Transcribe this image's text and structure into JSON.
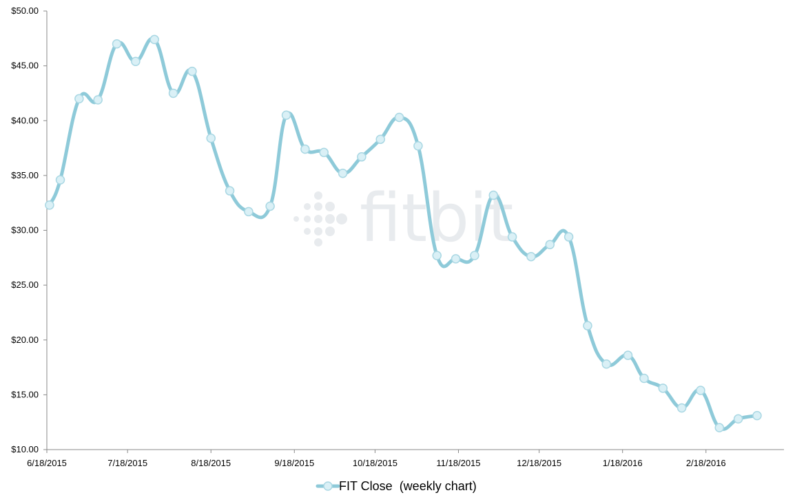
{
  "chart_data": {
    "type": "line",
    "title": "",
    "xlabel": "",
    "ylabel": "",
    "ylim": [
      10,
      50
    ],
    "y_ticks": [
      "$10.00",
      "$15.00",
      "$20.00",
      "$25.00",
      "$30.00",
      "$35.00",
      "$40.00",
      "$45.00",
      "$50.00"
    ],
    "x_range": [
      "2015-06-18",
      "2016-03-18"
    ],
    "x_ticks": [
      {
        "date": "2015-06-18",
        "label": "6/18/2015"
      },
      {
        "date": "2015-07-18",
        "label": "7/18/2015"
      },
      {
        "date": "2015-08-18",
        "label": "8/18/2015"
      },
      {
        "date": "2015-09-18",
        "label": "9/18/2015"
      },
      {
        "date": "2015-10-18",
        "label": "10/18/2015"
      },
      {
        "date": "2015-11-18",
        "label": "11/18/2015"
      },
      {
        "date": "2015-12-18",
        "label": "12/18/2015"
      },
      {
        "date": "2016-01-18",
        "label": "1/18/2016"
      },
      {
        "date": "2016-02-18",
        "label": "2/18/2016"
      }
    ],
    "grid": false,
    "legend_position": "bottom-center",
    "series": [
      {
        "name": "FIT Close  (weekly chart)",
        "color": "#8ecad9",
        "marker_fill": "#daf0f6",
        "points": [
          {
            "x": "2015-06-19",
            "y": 32.3
          },
          {
            "x": "2015-06-23",
            "y": 34.6
          },
          {
            "x": "2015-06-30",
            "y": 42.0
          },
          {
            "x": "2015-07-07",
            "y": 41.9
          },
          {
            "x": "2015-07-14",
            "y": 47.0
          },
          {
            "x": "2015-07-21",
            "y": 45.4
          },
          {
            "x": "2015-07-28",
            "y": 47.4
          },
          {
            "x": "2015-08-04",
            "y": 42.5
          },
          {
            "x": "2015-08-11",
            "y": 44.5
          },
          {
            "x": "2015-08-18",
            "y": 38.4
          },
          {
            "x": "2015-08-25",
            "y": 33.6
          },
          {
            "x": "2015-09-01",
            "y": 31.7
          },
          {
            "x": "2015-09-09",
            "y": 32.2
          },
          {
            "x": "2015-09-15",
            "y": 40.5
          },
          {
            "x": "2015-09-22",
            "y": 37.4
          },
          {
            "x": "2015-09-29",
            "y": 37.1
          },
          {
            "x": "2015-10-06",
            "y": 35.2
          },
          {
            "x": "2015-10-13",
            "y": 36.7
          },
          {
            "x": "2015-10-20",
            "y": 38.3
          },
          {
            "x": "2015-10-27",
            "y": 40.3
          },
          {
            "x": "2015-11-03",
            "y": 37.7
          },
          {
            "x": "2015-11-10",
            "y": 27.7
          },
          {
            "x": "2015-11-17",
            "y": 27.4
          },
          {
            "x": "2015-11-24",
            "y": 27.7
          },
          {
            "x": "2015-12-01",
            "y": 33.2
          },
          {
            "x": "2015-12-08",
            "y": 29.4
          },
          {
            "x": "2015-12-15",
            "y": 27.6
          },
          {
            "x": "2015-12-22",
            "y": 28.7
          },
          {
            "x": "2015-12-29",
            "y": 29.4
          },
          {
            "x": "2016-01-05",
            "y": 21.3
          },
          {
            "x": "2016-01-12",
            "y": 17.8
          },
          {
            "x": "2016-01-20",
            "y": 18.6
          },
          {
            "x": "2016-01-26",
            "y": 16.5
          },
          {
            "x": "2016-02-02",
            "y": 15.6
          },
          {
            "x": "2016-02-09",
            "y": 13.8
          },
          {
            "x": "2016-02-16",
            "y": 15.4
          },
          {
            "x": "2016-02-23",
            "y": 12.0
          },
          {
            "x": "2016-03-01",
            "y": 12.8
          },
          {
            "x": "2016-03-08",
            "y": 13.1
          }
        ]
      }
    ]
  },
  "watermark": {
    "text": "fitbit",
    "color": "#e8ebee"
  }
}
